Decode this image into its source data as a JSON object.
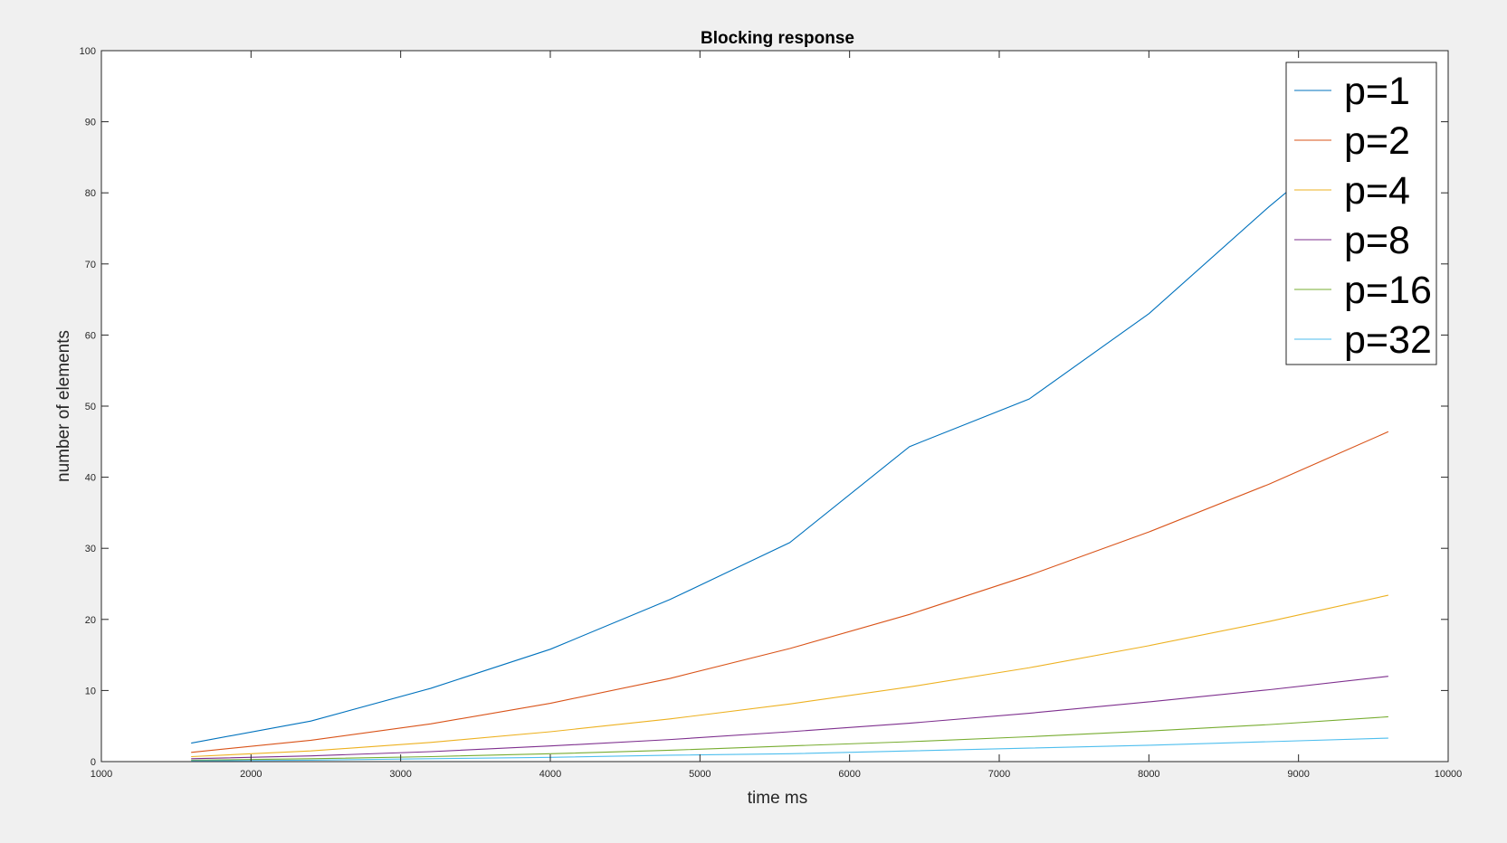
{
  "chart_data": {
    "type": "line",
    "title": "Blocking response",
    "xlabel": "time ms",
    "ylabel": "number of elements",
    "xlim": [
      1000,
      10000
    ],
    "ylim": [
      0,
      100
    ],
    "xticks": [
      1000,
      2000,
      3000,
      4000,
      5000,
      6000,
      7000,
      8000,
      9000,
      10000
    ],
    "yticks": [
      0,
      10,
      20,
      30,
      40,
      50,
      60,
      70,
      80,
      90,
      100
    ],
    "grid": false,
    "legend_position": "top-right",
    "x": [
      1600,
      2400,
      3200,
      4000,
      4800,
      5600,
      6400,
      7200,
      8000,
      8800,
      9600
    ],
    "series": [
      {
        "name": "p=1",
        "color": "#0072BD",
        "values": [
          2.6,
          5.7,
          10.3,
          15.8,
          22.8,
          30.8,
          44.3,
          51.0,
          63.0,
          78.0,
          92.0
        ]
      },
      {
        "name": "p=2",
        "color": "#D95319",
        "values": [
          1.3,
          3.0,
          5.3,
          8.2,
          11.7,
          15.9,
          20.7,
          26.2,
          32.3,
          39.0,
          46.4
        ]
      },
      {
        "name": "p=4",
        "color": "#EDB120",
        "values": [
          0.7,
          1.5,
          2.7,
          4.2,
          6.0,
          8.1,
          10.5,
          13.2,
          16.3,
          19.7,
          23.4
        ]
      },
      {
        "name": "p=8",
        "color": "#7E2F8E",
        "values": [
          0.4,
          0.8,
          1.4,
          2.2,
          3.1,
          4.2,
          5.4,
          6.8,
          8.4,
          10.1,
          12.0
        ]
      },
      {
        "name": "p=16",
        "color": "#77AC30",
        "values": [
          0.2,
          0.4,
          0.7,
          1.1,
          1.6,
          2.2,
          2.8,
          3.5,
          4.3,
          5.2,
          6.3
        ]
      },
      {
        "name": "p=32",
        "color": "#4DBEEE",
        "values": [
          0.1,
          0.2,
          0.4,
          0.6,
          0.9,
          1.1,
          1.5,
          1.9,
          2.3,
          2.8,
          3.3
        ]
      }
    ]
  }
}
